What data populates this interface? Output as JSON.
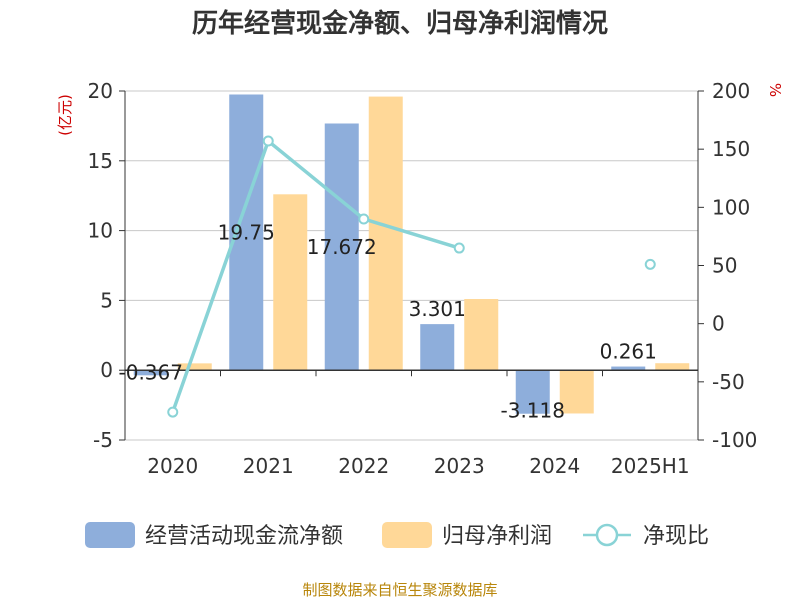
{
  "chart_data": {
    "type": "bar",
    "title": "历年经营现金净额、归母净利润情况",
    "categories": [
      "2020",
      "2021",
      "2022",
      "2023",
      "2024",
      "2025H1"
    ],
    "series": [
      {
        "name": "经营活动现金流净额",
        "type": "bar",
        "axis": "left",
        "color": "#8eaedb",
        "values": [
          -0.367,
          19.75,
          17.672,
          3.301,
          -3.118,
          0.261
        ],
        "labels": [
          "-0.367",
          "19.75",
          "17.672",
          "3.301",
          "-3.118",
          "0.261"
        ]
      },
      {
        "name": "归母净利润",
        "type": "bar",
        "axis": "left",
        "color": "#ffd898",
        "values": [
          0.49,
          12.6,
          19.6,
          5.1,
          -3.1,
          0.5
        ]
      },
      {
        "name": "净现比",
        "type": "line",
        "axis": "right",
        "color": "#89d3d6",
        "values": [
          -76,
          157,
          90,
          65,
          null,
          51
        ]
      }
    ],
    "y_left": {
      "unit": "(亿元)",
      "min": -5,
      "max": 20,
      "ticks": [
        "-5",
        "0",
        "5",
        "10",
        "15",
        "20"
      ]
    },
    "y_right": {
      "unit": "%",
      "min": -100,
      "max": 200,
      "ticks": [
        "-100",
        "-50",
        "0",
        "50",
        "100",
        "150",
        "200"
      ]
    },
    "grid": true,
    "legend_position": "bottom",
    "source": "制图数据来自恒生聚源数据库"
  }
}
